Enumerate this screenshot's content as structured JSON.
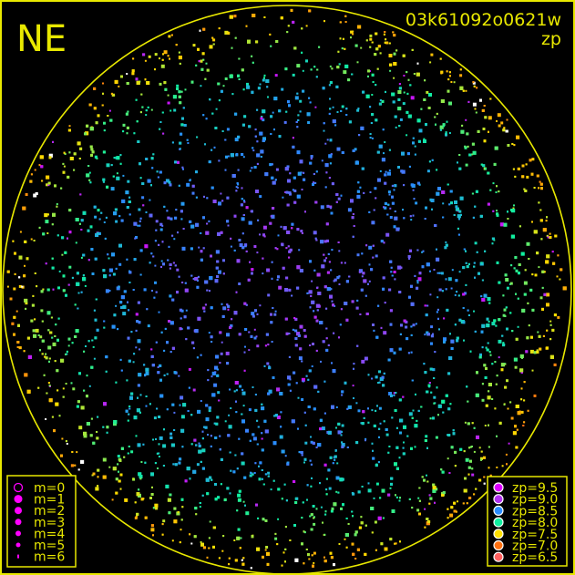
{
  "chart_data": {
    "type": "scatter",
    "title": "03k61092o0621w",
    "subtitle": "zp",
    "corner_label": "NE",
    "frame_color": "#e8e800",
    "background": "#000000",
    "horizon_circle": true,
    "point_count_approx": 5000,
    "distribution": "stars over the whole sky circle; zp highest (blue/violet, ~8.5-9.0) near the zenith, cyan band (~8.2) low in the south, dropping to green/yellow/orange (~7.0-8.0) near the horizon",
    "size_legend": {
      "placement": "bottom-left",
      "color": "#ff00ff",
      "entries": [
        {
          "label": "m=0",
          "hollow": true
        },
        {
          "label": "m=1"
        },
        {
          "label": "m=2"
        },
        {
          "label": "m=3"
        },
        {
          "label": "m=4"
        },
        {
          "label": "m=5"
        },
        {
          "label": "m=6"
        }
      ]
    },
    "color_legend": {
      "placement": "bottom-right",
      "entries": [
        {
          "label": "zp=9.5",
          "zp": 9.5,
          "color": "#dd00ff"
        },
        {
          "label": "zp=9.0",
          "zp": 9.0,
          "color": "#b030f0"
        },
        {
          "label": "zp=8.5",
          "zp": 8.5,
          "color": "#2a8cff"
        },
        {
          "label": "zp=8.0",
          "zp": 8.0,
          "color": "#10f0a0"
        },
        {
          "label": "zp=7.5",
          "zp": 7.5,
          "color": "#ffe000"
        },
        {
          "label": "zp=7.0",
          "zp": 7.0,
          "color": "#ff7010"
        },
        {
          "label": "zp=6.5",
          "zp": 6.5,
          "color": "#ff6060"
        }
      ]
    }
  }
}
